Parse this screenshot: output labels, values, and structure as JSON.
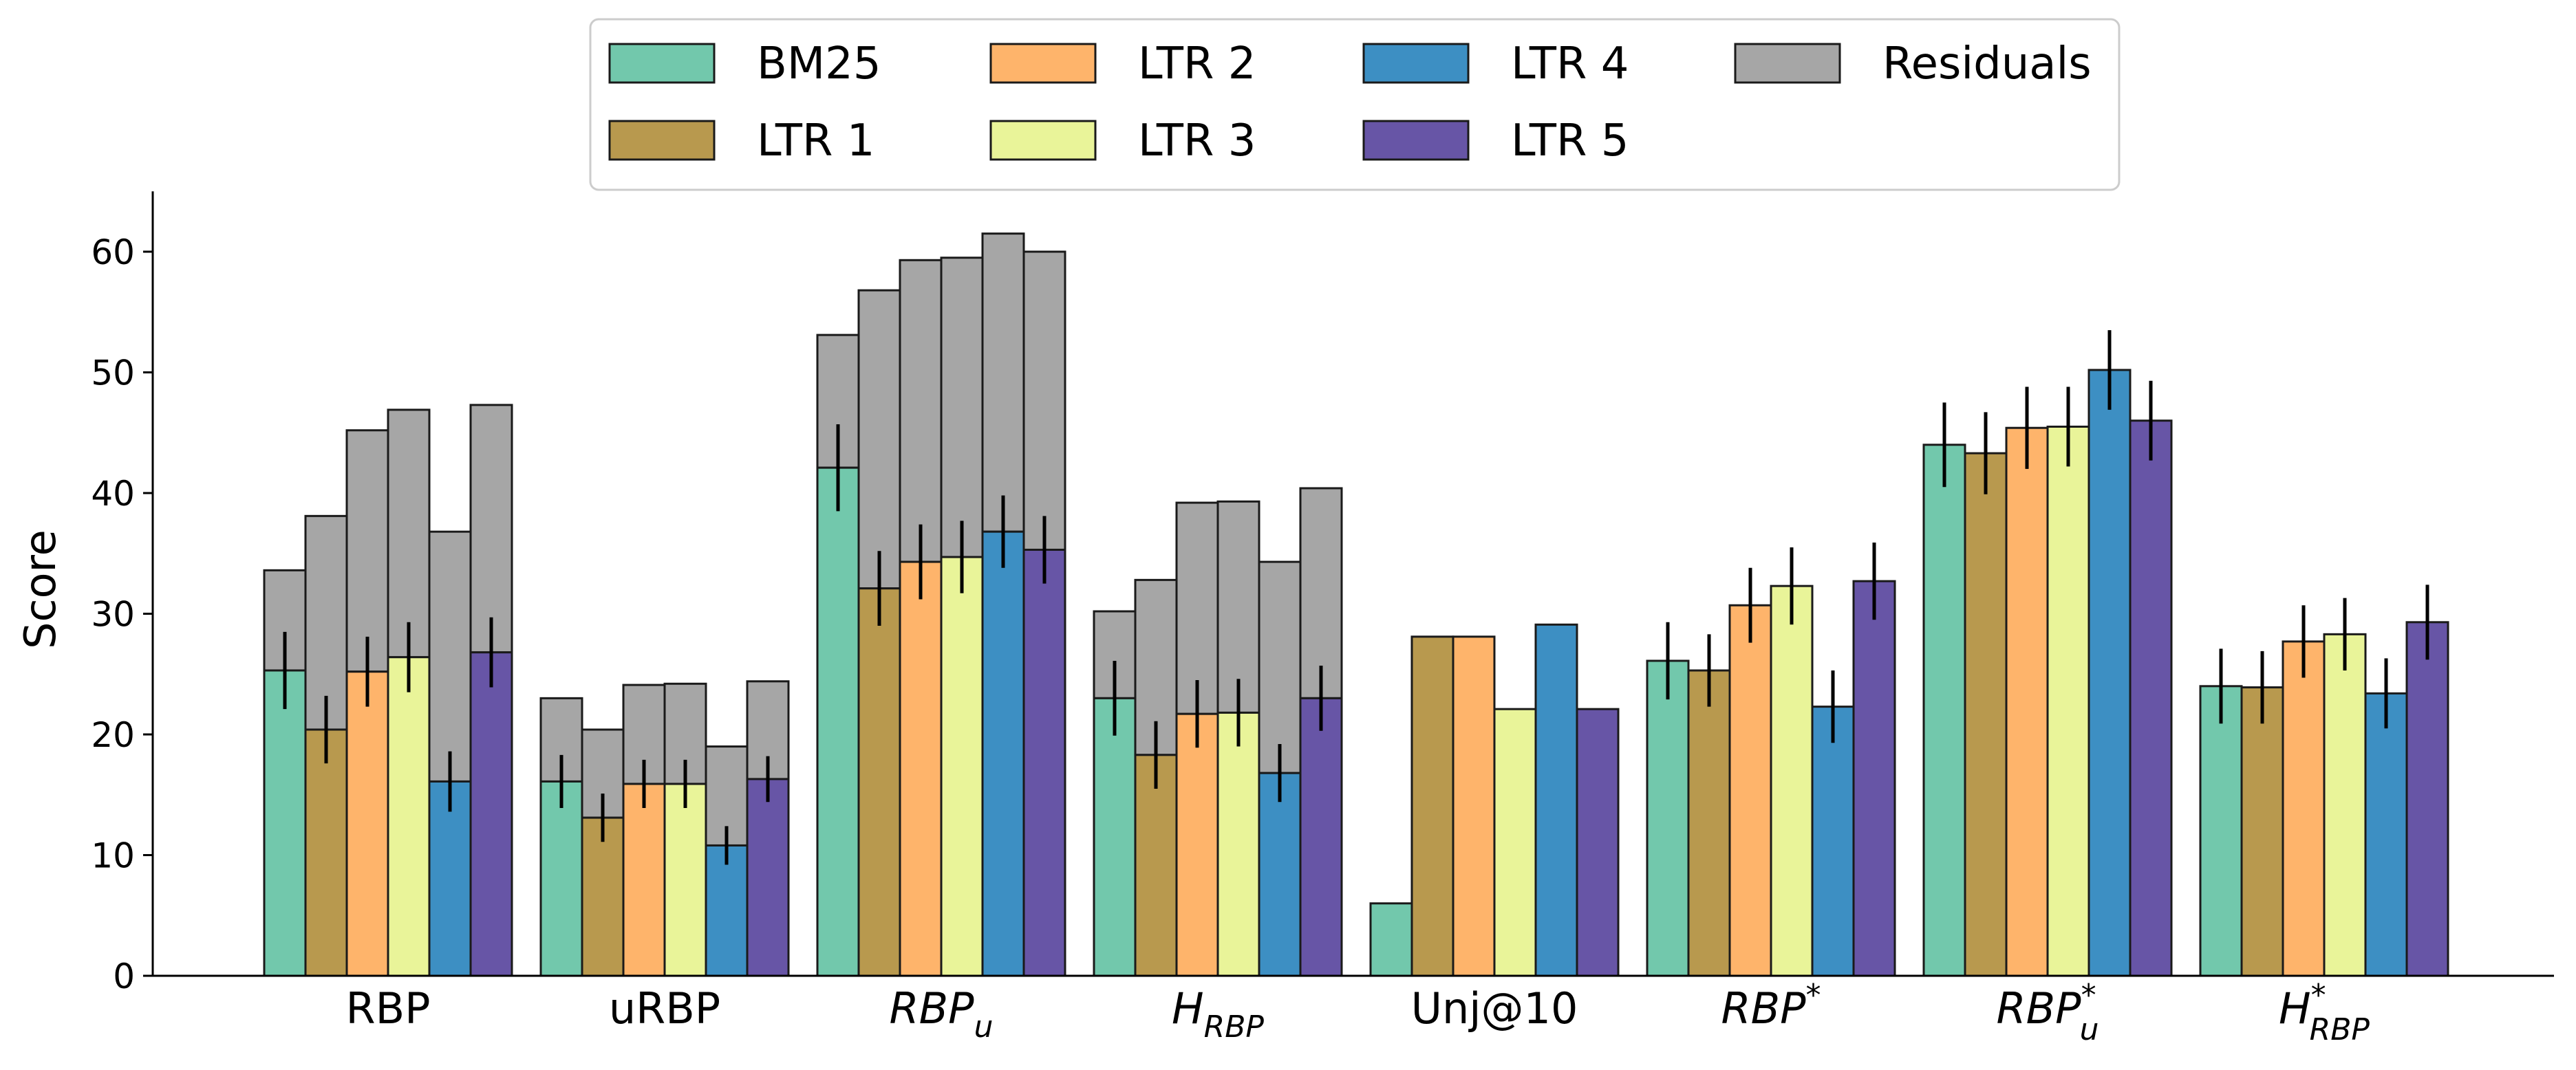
{
  "chart_data": {
    "type": "bar",
    "ylabel": "Score",
    "ylim": [
      0,
      65
    ],
    "yticks": [
      0,
      10,
      20,
      30,
      40,
      50,
      60
    ],
    "grid": false,
    "legend_position": "top-center",
    "categories": [
      "RBP",
      "uRBP",
      "RBP_u",
      "H_RBP",
      "Unj@10",
      "RBP*",
      "RBP_u*",
      "H_RBP*"
    ],
    "category_labels": [
      {
        "base": "RBP",
        "sub": "",
        "sup": "",
        "italic": false
      },
      {
        "base": "uRBP",
        "sub": "",
        "sup": "",
        "italic": false
      },
      {
        "base": "RBP",
        "sub": "u",
        "sup": "",
        "italic": true
      },
      {
        "base": "H",
        "sub": "RBP",
        "sup": "",
        "italic": true
      },
      {
        "base": "Unj@10",
        "sub": "",
        "sup": "",
        "italic": false
      },
      {
        "base": "RBP",
        "sub": "",
        "sup": "*",
        "italic": true
      },
      {
        "base": "RBP",
        "sub": "u",
        "sup": "*",
        "italic": true
      },
      {
        "base": "H",
        "sub": "RBP",
        "sup": "*",
        "italic": true
      }
    ],
    "series": [
      {
        "name": "BM25",
        "color": "#72c8ac",
        "values": [
          25.3,
          16.1,
          42.1,
          23.0,
          6.0,
          26.1,
          44.0,
          24.0
        ],
        "errors": [
          3.2,
          2.2,
          3.6,
          3.1,
          null,
          3.2,
          3.5,
          3.1
        ],
        "totals": [
          33.6,
          23.0,
          53.1,
          30.2,
          null,
          null,
          null,
          null
        ]
      },
      {
        "name": "LTR 1",
        "color": "#b8994e",
        "values": [
          20.4,
          13.1,
          32.1,
          18.3,
          28.1,
          25.3,
          43.3,
          23.9
        ],
        "errors": [
          2.8,
          2.0,
          3.1,
          2.8,
          null,
          3.0,
          3.4,
          3.0
        ],
        "totals": [
          38.1,
          20.4,
          56.8,
          32.8,
          null,
          null,
          null,
          null
        ]
      },
      {
        "name": "LTR 2",
        "color": "#feb46b",
        "values": [
          25.2,
          15.9,
          34.3,
          21.7,
          28.1,
          30.7,
          45.4,
          27.7
        ],
        "errors": [
          2.9,
          2.0,
          3.1,
          2.8,
          null,
          3.1,
          3.4,
          3.0
        ],
        "totals": [
          45.2,
          24.1,
          59.3,
          39.2,
          null,
          null,
          null,
          null
        ]
      },
      {
        "name": "LTR 3",
        "color": "#e9f499",
        "values": [
          26.4,
          15.9,
          34.7,
          21.8,
          22.1,
          32.3,
          45.5,
          28.3
        ],
        "errors": [
          2.9,
          2.0,
          3.0,
          2.8,
          null,
          3.2,
          3.3,
          3.0
        ],
        "totals": [
          46.9,
          24.2,
          59.5,
          39.3,
          null,
          null,
          null,
          null
        ]
      },
      {
        "name": "LTR 4",
        "color": "#3d8fc3",
        "values": [
          16.1,
          10.8,
          36.8,
          16.8,
          29.1,
          22.3,
          50.2,
          23.4
        ],
        "errors": [
          2.5,
          1.6,
          3.0,
          2.4,
          null,
          3.0,
          3.3,
          2.9
        ],
        "totals": [
          36.8,
          19.0,
          61.5,
          34.3,
          null,
          null,
          null,
          null
        ]
      },
      {
        "name": "LTR 5",
        "color": "#6755a6",
        "values": [
          26.8,
          16.3,
          35.3,
          23.0,
          22.1,
          32.7,
          46.0,
          29.3
        ],
        "errors": [
          2.9,
          1.9,
          2.8,
          2.7,
          null,
          3.2,
          3.3,
          3.1
        ],
        "totals": [
          47.3,
          24.4,
          60.0,
          40.4,
          null,
          null,
          null,
          null
        ]
      }
    ],
    "residuals": {
      "name": "Residuals",
      "color": "#a6a6a6"
    },
    "legend_order": [
      "BM25",
      "LTR 2",
      "LTR 4",
      "Residuals",
      "LTR 1",
      "LTR 3",
      "LTR 5"
    ]
  }
}
